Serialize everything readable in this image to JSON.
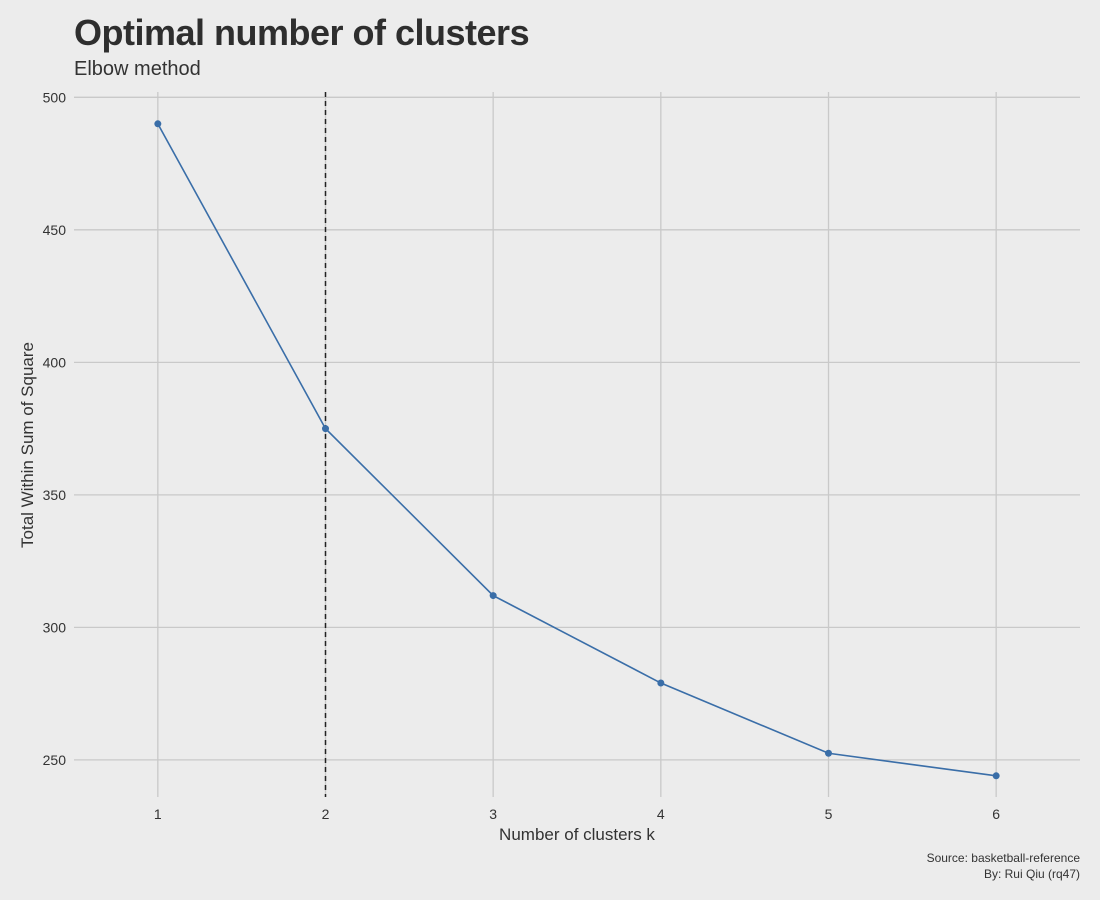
{
  "chart_data": {
    "type": "line",
    "title": "Optimal number of clusters",
    "subtitle": "Elbow method",
    "xlabel": "Number of clusters k",
    "ylabel": "Total Within Sum of Square",
    "x": [
      1,
      2,
      3,
      4,
      5,
      6
    ],
    "x_tick_labels": [
      "1",
      "2",
      "3",
      "4",
      "5",
      "6"
    ],
    "y_ticks": [
      250,
      300,
      350,
      400,
      450,
      500
    ],
    "y_tick_labels": [
      "250",
      "300",
      "350",
      "400",
      "450",
      "500"
    ],
    "series": [
      {
        "values": [
          490,
          375,
          312,
          279,
          252.5,
          244
        ]
      }
    ],
    "xlim": [
      0.5,
      6.5
    ],
    "ylim": [
      236,
      502
    ],
    "vline_x": 2,
    "grid": true,
    "line_color": "#3a6ea8",
    "vline_color": "#222222",
    "grid_color": "#c9c9c9",
    "background": "#ececec"
  },
  "caption": {
    "source": "Source: basketball-reference",
    "author": "By: Rui Qiu (rq47)"
  }
}
